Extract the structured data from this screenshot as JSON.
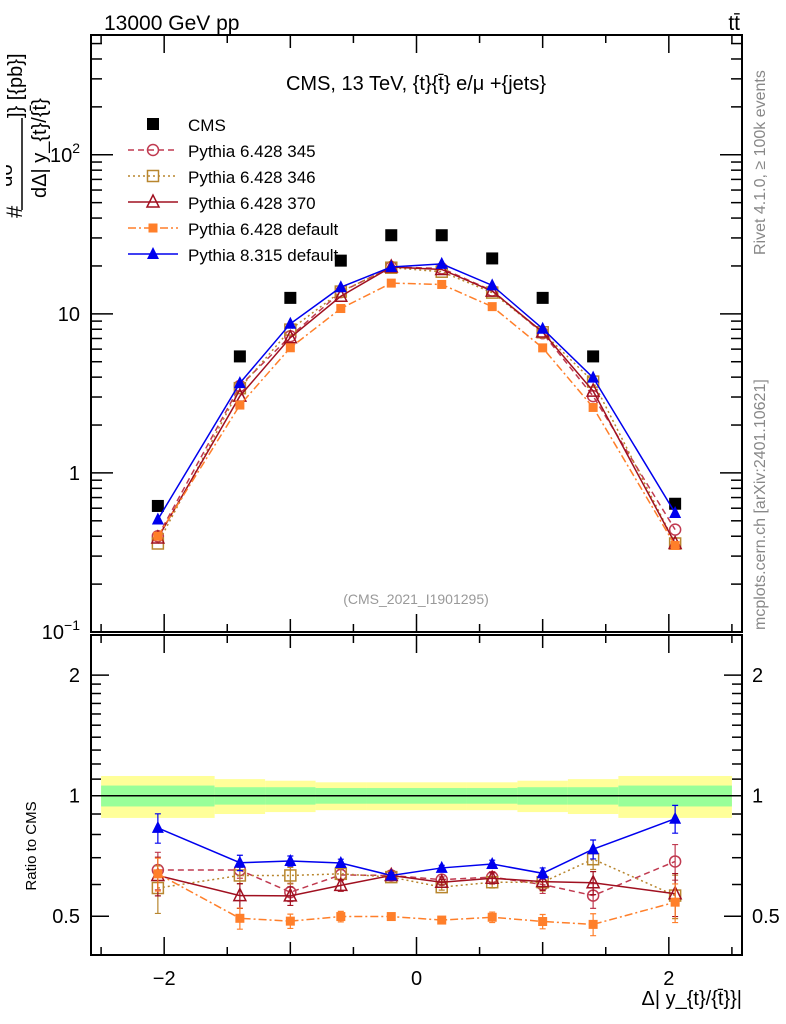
{
  "header": {
    "energy_label": "13000 GeV pp",
    "process_label": "tt̄",
    "plot_title": "CMS, 13 TeV, {t}{t̄} e/μ +{jets}",
    "analysis_id": "(CMS_2021_I1901295)",
    "side_label_rivet": "Rivet 4.1.0, ≥ 100k events",
    "side_label_mcplots": "mcplots.cern.ch [arXiv:2401.10621]"
  },
  "chart_data": [
    {
      "type": "line",
      "panel": "main",
      "title": "CMS, 13 TeV, {t}{t̄} e/μ +{jets}",
      "xlabel": "Δ| y_{t}/{t̄}}|",
      "ylabel_parts": {
        "hash": "#",
        "numerator": "dσ",
        "denominator": "dΔ| y_{t}/{t̄}",
        "units": "]} [{pb}]"
      },
      "xscale": "linear",
      "yscale": "log",
      "xlim": [
        -2.58,
        2.58
      ],
      "ylim": [
        0.1,
        566
      ],
      "x_ticks": [
        {
          "value": -2,
          "label": "−2"
        },
        {
          "value": 0,
          "label": "0"
        },
        {
          "value": 2,
          "label": "2"
        }
      ],
      "y_ticks": [
        {
          "value": 0.1,
          "label": "10",
          "sup": "−1"
        },
        {
          "value": 1,
          "label": "1",
          "sup": ""
        },
        {
          "value": 10,
          "label": "10",
          "sup": ""
        },
        {
          "value": 100,
          "label": "10",
          "sup": "2"
        }
      ],
      "legend_position": "top-left",
      "x": [
        -2.05,
        -1.4,
        -1.0,
        -0.6,
        -0.2,
        0.2,
        0.6,
        1.0,
        1.4,
        2.05
      ],
      "series": [
        {
          "name": "CMS",
          "color": "#000000",
          "marker": "square-filled",
          "line": "none",
          "values": [
            0.62,
            5.4,
            12.6,
            21.6,
            31.2,
            31.2,
            22.3,
            12.6,
            5.4,
            0.64
          ]
        },
        {
          "name": "Pythia 6.428 345",
          "color": "#c03a50",
          "marker": "circle-open",
          "line": "dashed",
          "values": [
            0.4,
            3.52,
            7.23,
            13.7,
            19.7,
            19.3,
            14.0,
            7.56,
            3.04,
            0.44
          ]
        },
        {
          "name": "Pythia 6.428 346",
          "color": "#b8862e",
          "marker": "square-open",
          "line": "dotted",
          "values": [
            0.36,
            3.41,
            7.96,
            13.8,
            19.5,
            18.4,
            13.6,
            7.66,
            3.75,
            0.36
          ]
        },
        {
          "name": "Pythia 6.428 370",
          "color": "#a01020",
          "marker": "triangle-open",
          "line": "solid",
          "values": [
            0.39,
            3.04,
            7.08,
            12.9,
            19.7,
            19.0,
            13.9,
            7.69,
            3.27,
            0.36
          ]
        },
        {
          "name": "Pythia 6.428 default",
          "color": "#ff7f2a",
          "marker": "square-filled-small",
          "line": "dashdot",
          "values": [
            0.4,
            2.67,
            6.12,
            10.8,
            15.6,
            15.3,
            11.1,
            6.11,
            2.58,
            0.35
          ]
        },
        {
          "name": "Pythia 8.315 default",
          "color": "#0000ee",
          "marker": "triangle-filled",
          "line": "solid",
          "values": [
            0.51,
            3.67,
            8.66,
            14.7,
            19.7,
            20.6,
            15.1,
            8.06,
            3.97,
            0.56
          ]
        }
      ]
    },
    {
      "type": "line",
      "panel": "ratio",
      "ylabel": "Ratio to CMS",
      "xlabel": "Δ| y_{t}/{t̄}}|",
      "xscale": "linear",
      "yscale": "log",
      "xlim": [
        -2.58,
        2.58
      ],
      "ylim": [
        0.4,
        2.52
      ],
      "y_ticks": [
        {
          "value": 0.5,
          "label": "0.5"
        },
        {
          "value": 1,
          "label": "1"
        },
        {
          "value": 2,
          "label": "2"
        }
      ],
      "reference_band": {
        "bin_edges": [
          -2.5,
          -1.6,
          -1.2,
          -0.8,
          -0.4,
          0.0,
          0.4,
          0.8,
          1.2,
          1.6,
          2.5
        ],
        "total_unc": [
          0.12,
          0.1,
          0.09,
          0.08,
          0.08,
          0.08,
          0.08,
          0.09,
          0.1,
          0.12
        ],
        "stat_unc": [
          0.06,
          0.05,
          0.05,
          0.045,
          0.045,
          0.045,
          0.045,
          0.05,
          0.05,
          0.06
        ],
        "color_total": "#ffff99",
        "color_stat": "#99ff99"
      },
      "x": [
        -2.05,
        -1.4,
        -1.0,
        -0.6,
        -0.2,
        0.2,
        0.6,
        1.0,
        1.4,
        2.05
      ],
      "series": [
        {
          "name": "Pythia 6.428 345",
          "values": [
            0.652,
            0.652,
            0.574,
            0.634,
            0.632,
            0.617,
            0.626,
            0.6,
            0.563,
            0.685
          ],
          "errors": [
            0.07,
            0.03,
            0.03,
            0.02,
            0.01,
            0.01,
            0.02,
            0.03,
            0.04,
            0.07
          ]
        },
        {
          "name": "Pythia 6.428 346",
          "values": [
            0.588,
            0.632,
            0.632,
            0.638,
            0.626,
            0.591,
            0.608,
            0.608,
            0.694,
            0.563
          ],
          "errors": [
            0.08,
            0.03,
            0.03,
            0.02,
            0.01,
            0.01,
            0.02,
            0.03,
            0.04,
            0.07
          ]
        },
        {
          "name": "Pythia 6.428 370",
          "values": [
            0.632,
            0.563,
            0.562,
            0.597,
            0.632,
            0.608,
            0.622,
            0.61,
            0.606,
            0.569
          ],
          "errors": [
            0.07,
            0.04,
            0.03,
            0.02,
            0.01,
            0.01,
            0.02,
            0.03,
            0.04,
            0.07
          ]
        },
        {
          "name": "Pythia 6.428 default",
          "values": [
            0.638,
            0.494,
            0.486,
            0.499,
            0.499,
            0.489,
            0.497,
            0.485,
            0.477,
            0.542
          ],
          "errors": [
            0.06,
            0.03,
            0.02,
            0.015,
            0.01,
            0.01,
            0.015,
            0.02,
            0.03,
            0.06
          ]
        },
        {
          "name": "Pythia 8.315 default",
          "values": [
            0.831,
            0.68,
            0.687,
            0.679,
            0.632,
            0.66,
            0.675,
            0.64,
            0.735,
            0.876
          ],
          "errors": [
            0.07,
            0.03,
            0.02,
            0.015,
            0.01,
            0.01,
            0.015,
            0.02,
            0.04,
            0.07
          ]
        }
      ]
    }
  ]
}
